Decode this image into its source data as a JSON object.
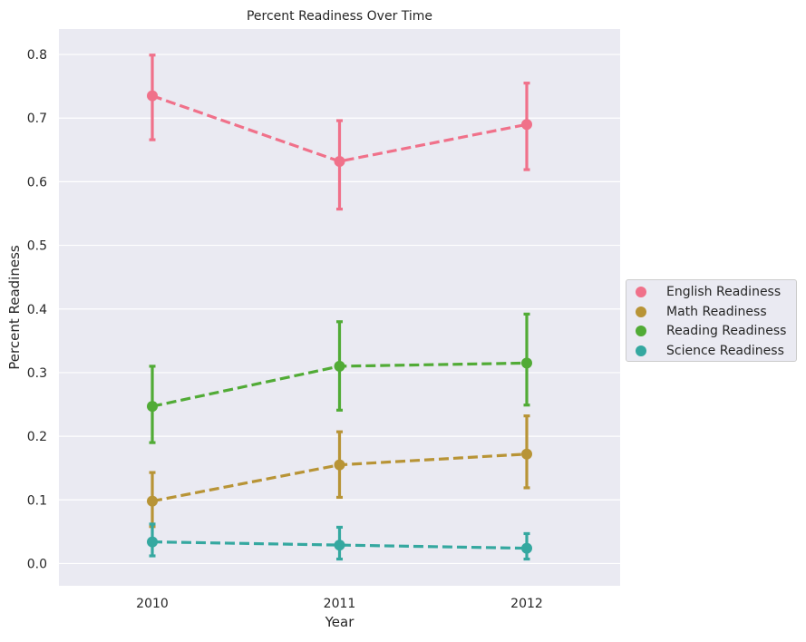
{
  "chart_data": {
    "type": "line",
    "title": "Percent Readiness Over Time",
    "xlabel": "Year",
    "ylabel": "Percent Readiness",
    "categories": [
      "2010",
      "2011",
      "2012"
    ],
    "ylim": [
      -0.035,
      0.84
    ],
    "yticks": [
      "0.0",
      "0.1",
      "0.2",
      "0.3",
      "0.4",
      "0.5",
      "0.6",
      "0.7",
      "0.8"
    ],
    "grid": true,
    "legend_position": "center-right",
    "line_style": "dashed",
    "background": "#eaeaf2",
    "series": [
      {
        "name": "English Readiness",
        "color": "#f0718a",
        "values": [
          0.735,
          0.632,
          0.69
        ],
        "error_low": [
          0.666,
          0.557,
          0.619
        ],
        "error_high": [
          0.799,
          0.696,
          0.755
        ]
      },
      {
        "name": "Math Readiness",
        "color": "#b89436",
        "values": [
          0.098,
          0.155,
          0.172
        ],
        "error_low": [
          0.058,
          0.104,
          0.119
        ],
        "error_high": [
          0.143,
          0.207,
          0.232
        ]
      },
      {
        "name": "Reading Readiness",
        "color": "#51ab36",
        "values": [
          0.247,
          0.31,
          0.315
        ],
        "error_low": [
          0.19,
          0.241,
          0.249
        ],
        "error_high": [
          0.31,
          0.38,
          0.392
        ]
      },
      {
        "name": "Science Readiness",
        "color": "#35a8a0",
        "values": [
          0.034,
          0.029,
          0.024
        ],
        "error_low": [
          0.012,
          0.007,
          0.007
        ],
        "error_high": [
          0.062,
          0.057,
          0.047
        ]
      }
    ]
  }
}
